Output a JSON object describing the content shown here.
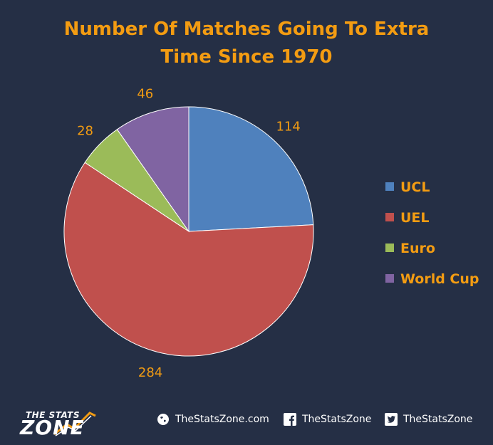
{
  "chart_data": {
    "type": "pie",
    "title_lines": [
      "Number Of Matches Going To Extra",
      "Time Since 1970"
    ],
    "categories": [
      "UCL",
      "UEL",
      "Euro",
      "World Cup"
    ],
    "values": [
      114,
      284,
      28,
      46
    ],
    "value_labels": [
      "114",
      "284",
      "28",
      "46"
    ],
    "colors": [
      "#4f81bd",
      "#c0504d",
      "#9bbb59",
      "#8064a2"
    ],
    "legend_position": "right",
    "label_color": "#f39c12"
  },
  "footer": {
    "logo_top": "THE STATS",
    "logo_bottom": "ZONE",
    "website": "TheStatsZone.com",
    "facebook": "TheStatsZone",
    "twitter": "TheStatsZone"
  },
  "icons": [
    "globe-icon",
    "facebook-icon",
    "twitter-icon"
  ]
}
